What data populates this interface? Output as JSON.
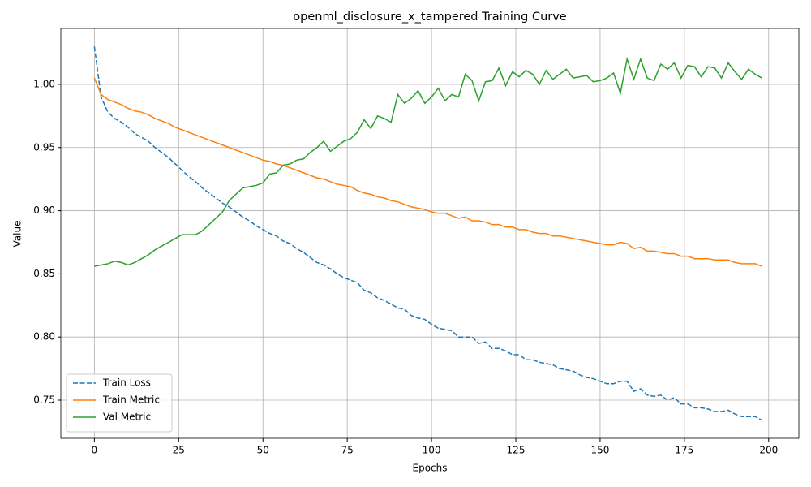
{
  "chart_data": {
    "type": "line",
    "title": "openml_disclosure_x_tampered Training Curve",
    "x_label": "Epochs",
    "y_label": "Value",
    "x": [
      0,
      2,
      4,
      6,
      8,
      10,
      12,
      14,
      16,
      18,
      20,
      22,
      24,
      26,
      28,
      30,
      32,
      34,
      36,
      38,
      40,
      42,
      44,
      46,
      48,
      50,
      52,
      54,
      56,
      58,
      60,
      62,
      64,
      66,
      68,
      70,
      72,
      74,
      76,
      78,
      80,
      82,
      84,
      86,
      88,
      90,
      92,
      94,
      96,
      98,
      100,
      102,
      104,
      106,
      108,
      110,
      112,
      114,
      116,
      118,
      120,
      122,
      124,
      126,
      128,
      130,
      132,
      134,
      136,
      138,
      140,
      142,
      144,
      146,
      148,
      150,
      152,
      154,
      156,
      158,
      160,
      162,
      164,
      166,
      168,
      170,
      172,
      174,
      176,
      178,
      180,
      182,
      184,
      186,
      188,
      190,
      192,
      194,
      196,
      198
    ],
    "series": [
      {
        "name": "Train Loss",
        "color": "#1f77b4",
        "linestyle": "dashed",
        "values": [
          1.03,
          0.99,
          0.978,
          0.973,
          0.97,
          0.966,
          0.961,
          0.958,
          0.955,
          0.95,
          0.946,
          0.942,
          0.937,
          0.932,
          0.927,
          0.923,
          0.918,
          0.914,
          0.91,
          0.906,
          0.903,
          0.899,
          0.895,
          0.892,
          0.888,
          0.885,
          0.882,
          0.88,
          0.876,
          0.874,
          0.87,
          0.867,
          0.863,
          0.859,
          0.857,
          0.854,
          0.85,
          0.847,
          0.845,
          0.843,
          0.837,
          0.835,
          0.831,
          0.829,
          0.826,
          0.823,
          0.822,
          0.817,
          0.815,
          0.814,
          0.81,
          0.807,
          0.806,
          0.805,
          0.8,
          0.8,
          0.8,
          0.795,
          0.796,
          0.791,
          0.791,
          0.789,
          0.786,
          0.786,
          0.782,
          0.782,
          0.78,
          0.779,
          0.778,
          0.775,
          0.774,
          0.773,
          0.77,
          0.768,
          0.767,
          0.765,
          0.763,
          0.763,
          0.765,
          0.765,
          0.757,
          0.759,
          0.754,
          0.753,
          0.754,
          0.75,
          0.752,
          0.747,
          0.747,
          0.744,
          0.744,
          0.743,
          0.741,
          0.741,
          0.742,
          0.739,
          0.737,
          0.737,
          0.737,
          0.734
        ]
      },
      {
        "name": "Train Metric",
        "color": "#ff7f0e",
        "linestyle": "solid",
        "values": [
          1.005,
          0.992,
          0.988,
          0.986,
          0.984,
          0.981,
          0.979,
          0.978,
          0.976,
          0.973,
          0.971,
          0.969,
          0.966,
          0.964,
          0.962,
          0.96,
          0.958,
          0.956,
          0.954,
          0.952,
          0.95,
          0.948,
          0.946,
          0.944,
          0.942,
          0.94,
          0.939,
          0.937,
          0.936,
          0.934,
          0.932,
          0.93,
          0.928,
          0.926,
          0.925,
          0.923,
          0.921,
          0.92,
          0.919,
          0.916,
          0.914,
          0.913,
          0.911,
          0.91,
          0.908,
          0.907,
          0.905,
          0.903,
          0.902,
          0.901,
          0.899,
          0.898,
          0.898,
          0.896,
          0.894,
          0.895,
          0.892,
          0.892,
          0.891,
          0.889,
          0.889,
          0.887,
          0.887,
          0.885,
          0.885,
          0.883,
          0.882,
          0.882,
          0.88,
          0.88,
          0.879,
          0.878,
          0.877,
          0.876,
          0.875,
          0.874,
          0.873,
          0.873,
          0.875,
          0.874,
          0.87,
          0.871,
          0.868,
          0.868,
          0.867,
          0.866,
          0.866,
          0.864,
          0.864,
          0.862,
          0.862,
          0.862,
          0.861,
          0.861,
          0.861,
          0.859,
          0.858,
          0.858,
          0.858,
          0.856
        ]
      },
      {
        "name": "Val Metric",
        "color": "#2ca02c",
        "linestyle": "solid",
        "values": [
          0.856,
          0.857,
          0.858,
          0.86,
          0.859,
          0.857,
          0.859,
          0.862,
          0.865,
          0.869,
          0.872,
          0.875,
          0.878,
          0.881,
          0.881,
          0.881,
          0.884,
          0.889,
          0.894,
          0.899,
          0.908,
          0.913,
          0.918,
          0.919,
          0.92,
          0.922,
          0.929,
          0.93,
          0.936,
          0.937,
          0.94,
          0.941,
          0.946,
          0.95,
          0.955,
          0.947,
          0.951,
          0.955,
          0.957,
          0.962,
          0.972,
          0.965,
          0.975,
          0.973,
          0.97,
          0.992,
          0.985,
          0.989,
          0.995,
          0.985,
          0.99,
          0.997,
          0.987,
          0.992,
          0.99,
          1.008,
          1.003,
          0.987,
          1.002,
          1.003,
          1.013,
          0.999,
          1.01,
          1.006,
          1.011,
          1.008,
          1.0,
          1.011,
          1.004,
          1.008,
          1.012,
          1.005,
          1.006,
          1.007,
          1.002,
          1.003,
          1.005,
          1.009,
          0.993,
          1.02,
          1.004,
          1.02,
          1.005,
          1.003,
          1.016,
          1.012,
          1.017,
          1.005,
          1.015,
          1.014,
          1.006,
          1.014,
          1.013,
          1.005,
          1.017,
          1.01,
          1.004,
          1.012,
          1.008,
          1.005
        ]
      }
    ],
    "xlim": [
      -9.95,
      208.95
    ],
    "ylim": [
      0.7198,
      1.0443
    ],
    "xticks": [
      0,
      25,
      50,
      75,
      100,
      125,
      150,
      175,
      200
    ],
    "yticks": [
      0.75,
      {
        "value": 0.8,
        "label": "0.80"
      },
      0.85,
      {
        "value": 0.9,
        "label": "0.90"
      },
      0.95,
      {
        "value": 1.0,
        "label": "1.00"
      }
    ],
    "grid": true,
    "legend": "lower left"
  }
}
